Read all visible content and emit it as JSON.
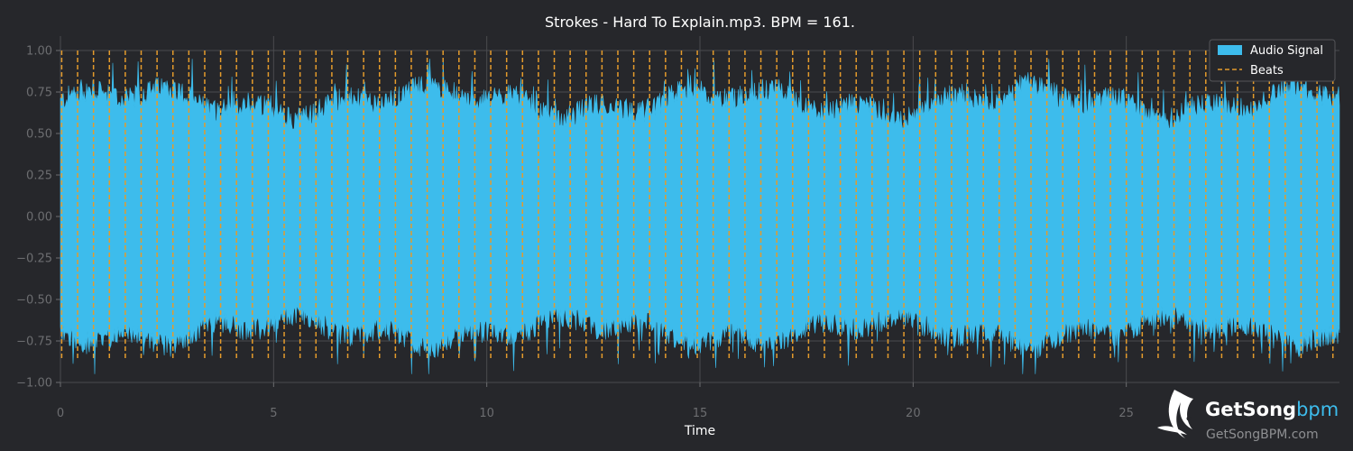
{
  "chart_data": {
    "type": "area",
    "title": "Strokes - Hard To Explain.mp3. BPM = 161.",
    "xlabel": "Time",
    "ylabel": "",
    "xlim": [
      0,
      30.0
    ],
    "ylim": [
      -1.0,
      1.0
    ],
    "xticks": [
      0,
      5,
      10,
      15,
      20,
      25
    ],
    "xtick_labels": [
      "0",
      "5",
      "10",
      "15",
      "20",
      "25"
    ],
    "yticks": [
      1.0,
      0.75,
      0.5,
      0.25,
      0.0,
      -0.25,
      -0.5,
      -0.75,
      -1.0
    ],
    "ytick_labels": [
      "1.00",
      "0.75",
      "0.50",
      "0.25",
      "0.00",
      "−0.25",
      "−0.50",
      "−0.75",
      "−1.00"
    ],
    "grid": true,
    "legend_position": "top-right",
    "bpm": 161,
    "series": [
      {
        "name": "Audio Signal",
        "kind": "waveform",
        "color": "#3dbcec",
        "x_range": [
          0,
          30.0
        ],
        "typical_peak": 0.7,
        "max_peak": 0.95
      },
      {
        "name": "Beats",
        "kind": "vertical-dashed-lines",
        "color": "#e49b2c",
        "first_beat": 0.03,
        "last_beat": 29.85,
        "beat_interval": 0.3727
      }
    ]
  },
  "logo": {
    "name": "GetSongBPM",
    "main_get": "GetSong",
    "main_bpm": "bpm",
    "url_text": "GetSongBPM.com"
  },
  "colors": {
    "background": "#26272b",
    "grid": "#4a4b4f",
    "signal": "#3dbcec",
    "beats": "#e49b2c",
    "tick_text": "#6c6d70"
  }
}
